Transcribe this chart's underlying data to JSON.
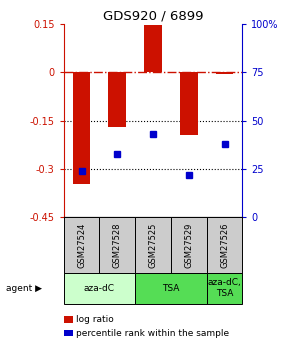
{
  "title": "GDS920 / 6899",
  "samples": [
    "GSM27524",
    "GSM27528",
    "GSM27525",
    "GSM27529",
    "GSM27526"
  ],
  "log_ratios": [
    -0.345,
    -0.17,
    0.148,
    -0.195,
    -0.005
  ],
  "percentile_ranks": [
    24,
    33,
    43,
    22,
    38
  ],
  "agent_data": [
    {
      "label": "aza-dC",
      "start": 0,
      "end": 2,
      "color": "#ccffcc"
    },
    {
      "label": "TSA",
      "start": 2,
      "end": 4,
      "color": "#55dd55"
    },
    {
      "label": "aza-dC,\nTSA",
      "start": 4,
      "end": 5,
      "color": "#55dd55"
    }
  ],
  "bar_color": "#cc1100",
  "dot_color": "#0000cc",
  "ylim_left": [
    -0.45,
    0.15
  ],
  "ylim_right": [
    0,
    100
  ],
  "yticks_left": [
    0.15,
    0.0,
    -0.15,
    -0.3,
    -0.45
  ],
  "yticks_right": [
    100,
    75,
    50,
    25,
    0
  ],
  "ytick_labels_left": [
    "0.15",
    "0",
    "-0.15",
    "-0.3",
    "-0.45"
  ],
  "ytick_labels_right": [
    "100%",
    "75",
    "50",
    "25",
    "0"
  ],
  "background_color": "#ffffff",
  "grid_dotted": [
    -0.15,
    -0.3
  ],
  "sample_box_color": "#cccccc",
  "legend_entries": [
    {
      "color": "#cc1100",
      "label": "log ratio"
    },
    {
      "color": "#0000cc",
      "label": "percentile rank within the sample"
    }
  ]
}
